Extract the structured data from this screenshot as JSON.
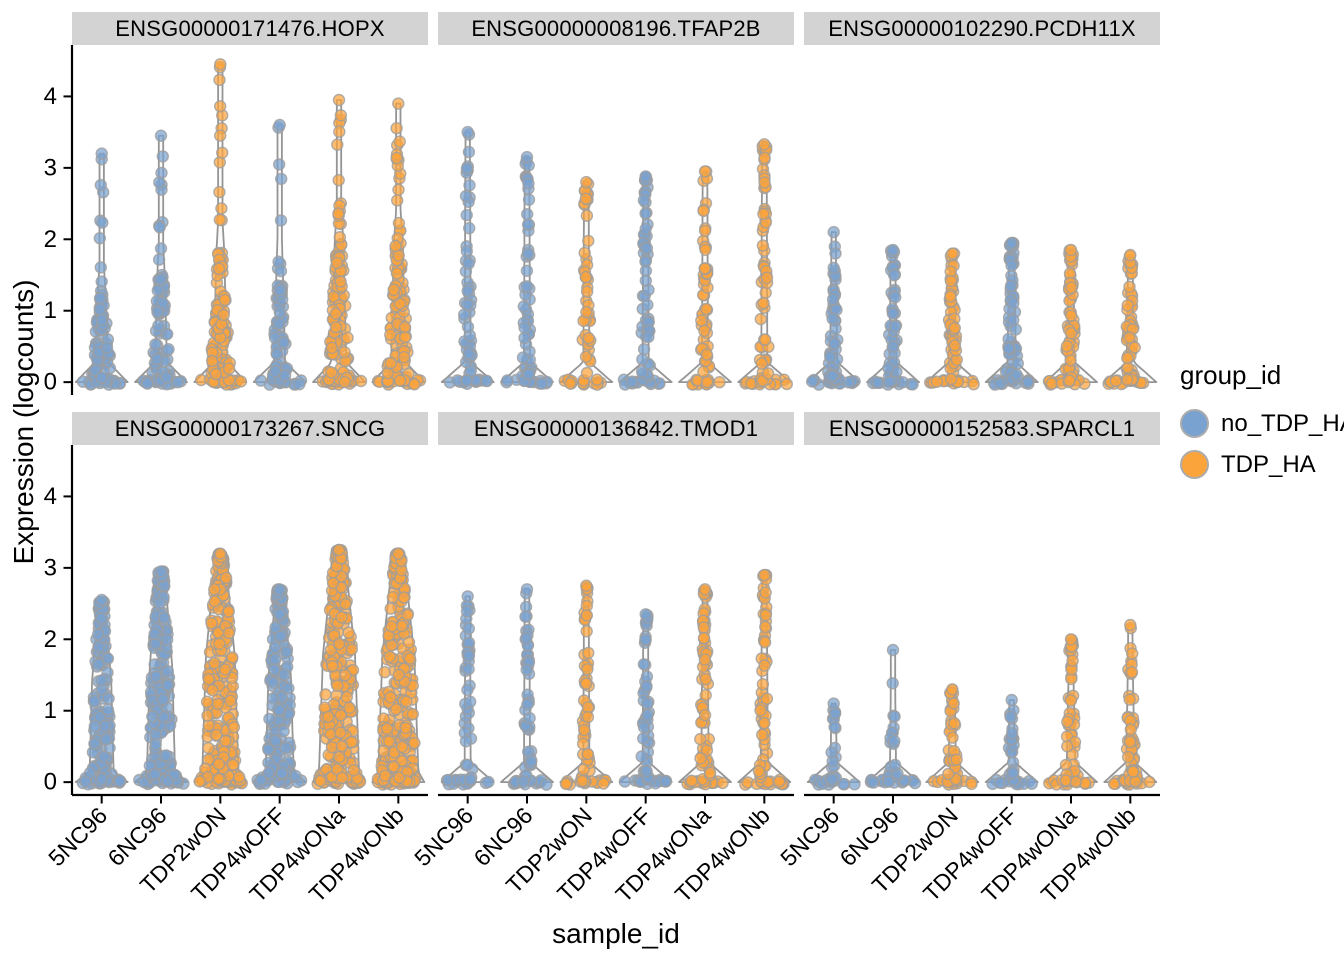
{
  "chart_data": {
    "type": "violin",
    "title": "",
    "xlabel": "sample_id",
    "ylabel": "Expression (logcounts)",
    "y_ticks": [
      0,
      1,
      2,
      3,
      4
    ],
    "ylim": [
      0,
      4.45
    ],
    "grid": "off",
    "categories": [
      "5NC96",
      "6NC96",
      "TDP2wON",
      "TDP4wOFF",
      "TDP4wONa",
      "TDP4wONb"
    ],
    "group_of_sample": [
      "no_TDP_HA",
      "no_TDP_HA",
      "TDP_HA",
      "no_TDP_HA",
      "TDP_HA",
      "TDP_HA"
    ],
    "legend": {
      "title": "group_id",
      "position": "right",
      "entries": [
        {
          "label": "no_TDP_HA",
          "color": "#7AA2D0"
        },
        {
          "label": "TDP_HA",
          "color": "#FCA43C"
        }
      ]
    },
    "style": {
      "point_radius": 5.5,
      "point_fill_opacity": 0.72,
      "point_stroke": "#9E9E9E",
      "violin_stroke": "#8A8A8A",
      "violin_fill": "#FBFBFB",
      "strip_bg": "#D3D3D3",
      "axis_color": "#000000"
    },
    "facets": [
      {
        "label": "ENSG00000171476.HOPX",
        "row": 0,
        "col": 0,
        "violins": [
          {
            "sample": "5NC96",
            "group": "no_TDP_HA",
            "max": 3.2,
            "dense_to": 1.25,
            "peak_halfwidth": 11,
            "n_points": 75,
            "shape": "spike"
          },
          {
            "sample": "6NC96",
            "group": "no_TDP_HA",
            "max": 3.45,
            "dense_to": 1.55,
            "peak_halfwidth": 10,
            "n_points": 75,
            "shape": "spike"
          },
          {
            "sample": "TDP2wON",
            "group": "TDP_HA",
            "max": 4.45,
            "dense_to": 1.85,
            "peak_halfwidth": 11,
            "n_points": 110,
            "shape": "spike"
          },
          {
            "sample": "TDP4wOFF",
            "group": "no_TDP_HA",
            "max": 3.6,
            "dense_to": 1.6,
            "peak_halfwidth": 9,
            "n_points": 70,
            "shape": "spike"
          },
          {
            "sample": "TDP4wONa",
            "group": "TDP_HA",
            "max": 3.95,
            "dense_to": 2.0,
            "peak_halfwidth": 12,
            "n_points": 115,
            "shape": "spike"
          },
          {
            "sample": "TDP4wONb",
            "group": "TDP_HA",
            "max": 3.9,
            "dense_to": 2.0,
            "peak_halfwidth": 12,
            "n_points": 115,
            "shape": "spike"
          }
        ]
      },
      {
        "label": "ENSG00000008196.TFAP2B",
        "row": 0,
        "col": 1,
        "violins": [
          {
            "sample": "5NC96",
            "group": "no_TDP_HA",
            "max": 3.5,
            "dense_to": 2.9,
            "peak_halfwidth": 5,
            "n_points": 50,
            "shape": "spike"
          },
          {
            "sample": "6NC96",
            "group": "no_TDP_HA",
            "max": 3.15,
            "dense_to": 2.7,
            "peak_halfwidth": 5,
            "n_points": 50,
            "shape": "spike"
          },
          {
            "sample": "TDP2wON",
            "group": "TDP_HA",
            "max": 2.8,
            "dense_to": 2.4,
            "peak_halfwidth": 5,
            "n_points": 45,
            "shape": "spike"
          },
          {
            "sample": "TDP4wOFF",
            "group": "no_TDP_HA",
            "max": 2.88,
            "dense_to": 2.8,
            "peak_halfwidth": 5,
            "n_points": 55,
            "shape": "spike"
          },
          {
            "sample": "TDP4wONa",
            "group": "TDP_HA",
            "max": 2.95,
            "dense_to": 2.7,
            "peak_halfwidth": 5,
            "n_points": 50,
            "shape": "spike"
          },
          {
            "sample": "TDP4wONb",
            "group": "TDP_HA",
            "max": 3.33,
            "dense_to": 2.9,
            "peak_halfwidth": 5,
            "n_points": 55,
            "shape": "spike"
          }
        ]
      },
      {
        "label": "ENSG00000102290.PCDH11X",
        "row": 0,
        "col": 2,
        "violins": [
          {
            "sample": "5NC96",
            "group": "no_TDP_HA",
            "max": 2.1,
            "dense_to": 1.6,
            "peak_halfwidth": 6,
            "n_points": 50,
            "shape": "spike"
          },
          {
            "sample": "6NC96",
            "group": "no_TDP_HA",
            "max": 1.85,
            "dense_to": 1.6,
            "peak_halfwidth": 6,
            "n_points": 50,
            "shape": "spike"
          },
          {
            "sample": "TDP2wON",
            "group": "TDP_HA",
            "max": 1.8,
            "dense_to": 1.65,
            "peak_halfwidth": 6,
            "n_points": 55,
            "shape": "spike"
          },
          {
            "sample": "TDP4wOFF",
            "group": "no_TDP_HA",
            "max": 1.95,
            "dense_to": 1.9,
            "peak_halfwidth": 7,
            "n_points": 65,
            "shape": "spike"
          },
          {
            "sample": "TDP4wONa",
            "group": "TDP_HA",
            "max": 1.85,
            "dense_to": 1.6,
            "peak_halfwidth": 6,
            "n_points": 55,
            "shape": "spike"
          },
          {
            "sample": "TDP4wONb",
            "group": "TDP_HA",
            "max": 1.78,
            "dense_to": 1.6,
            "peak_halfwidth": 6,
            "n_points": 55,
            "shape": "spike"
          }
        ]
      },
      {
        "label": "ENSG00000173267.SNCG",
        "row": 1,
        "col": 0,
        "violins": [
          {
            "sample": "5NC96",
            "group": "no_TDP_HA",
            "max": 2.55,
            "dense_to": 2.4,
            "peak_halfwidth": 12,
            "n_points": 150,
            "shape": "cone"
          },
          {
            "sample": "6NC96",
            "group": "no_TDP_HA",
            "max": 2.95,
            "dense_to": 2.75,
            "peak_halfwidth": 14,
            "n_points": 190,
            "shape": "cone"
          },
          {
            "sample": "TDP2wON",
            "group": "TDP_HA",
            "max": 3.2,
            "dense_to": 3.05,
            "peak_halfwidth": 18,
            "n_points": 260,
            "shape": "cone"
          },
          {
            "sample": "TDP4wOFF",
            "group": "no_TDP_HA",
            "max": 2.7,
            "dense_to": 2.55,
            "peak_halfwidth": 14,
            "n_points": 190,
            "shape": "cone"
          },
          {
            "sample": "TDP4wONa",
            "group": "TDP_HA",
            "max": 3.25,
            "dense_to": 3.1,
            "peak_halfwidth": 20,
            "n_points": 280,
            "shape": "cone"
          },
          {
            "sample": "TDP4wONb",
            "group": "TDP_HA",
            "max": 3.2,
            "dense_to": 3.05,
            "peak_halfwidth": 20,
            "n_points": 280,
            "shape": "cone"
          }
        ]
      },
      {
        "label": "ENSG00000136842.TMOD1",
        "row": 1,
        "col": 1,
        "violins": [
          {
            "sample": "5NC96",
            "group": "no_TDP_HA",
            "max": 2.6,
            "dense_to": 2.2,
            "peak_halfwidth": 5,
            "n_points": 40,
            "shape": "spike"
          },
          {
            "sample": "6NC96",
            "group": "no_TDP_HA",
            "max": 2.7,
            "dense_to": 2.3,
            "peak_halfwidth": 5,
            "n_points": 45,
            "shape": "spike"
          },
          {
            "sample": "TDP2wON",
            "group": "TDP_HA",
            "max": 2.75,
            "dense_to": 2.5,
            "peak_halfwidth": 5,
            "n_points": 50,
            "shape": "spike"
          },
          {
            "sample": "TDP4wOFF",
            "group": "no_TDP_HA",
            "max": 2.35,
            "dense_to": 2.2,
            "peak_halfwidth": 5,
            "n_points": 45,
            "shape": "spike"
          },
          {
            "sample": "TDP4wONa",
            "group": "TDP_HA",
            "max": 2.7,
            "dense_to": 2.6,
            "peak_halfwidth": 6,
            "n_points": 60,
            "shape": "spike"
          },
          {
            "sample": "TDP4wONb",
            "group": "TDP_HA",
            "max": 2.9,
            "dense_to": 2.5,
            "peak_halfwidth": 6,
            "n_points": 55,
            "shape": "spike"
          }
        ]
      },
      {
        "label": "ENSG00000152583.SPARCL1",
        "row": 1,
        "col": 2,
        "violins": [
          {
            "sample": "5NC96",
            "group": "no_TDP_HA",
            "max": 1.1,
            "dense_to": 0.95,
            "peak_halfwidth": 5,
            "n_points": 18,
            "shape": "spike"
          },
          {
            "sample": "6NC96",
            "group": "no_TDP_HA",
            "max": 1.85,
            "dense_to": 1.0,
            "peak_halfwidth": 5,
            "n_points": 20,
            "shape": "spike"
          },
          {
            "sample": "TDP2wON",
            "group": "TDP_HA",
            "max": 1.3,
            "dense_to": 1.2,
            "peak_halfwidth": 6,
            "n_points": 38,
            "shape": "spike"
          },
          {
            "sample": "TDP4wOFF",
            "group": "no_TDP_HA",
            "max": 1.15,
            "dense_to": 1.0,
            "peak_halfwidth": 5,
            "n_points": 24,
            "shape": "spike"
          },
          {
            "sample": "TDP4wONa",
            "group": "TDP_HA",
            "max": 2.0,
            "dense_to": 1.5,
            "peak_halfwidth": 7,
            "n_points": 50,
            "shape": "spike"
          },
          {
            "sample": "TDP4wONb",
            "group": "TDP_HA",
            "max": 2.2,
            "dense_to": 1.6,
            "peak_halfwidth": 7,
            "n_points": 50,
            "shape": "spike"
          }
        ]
      }
    ]
  }
}
